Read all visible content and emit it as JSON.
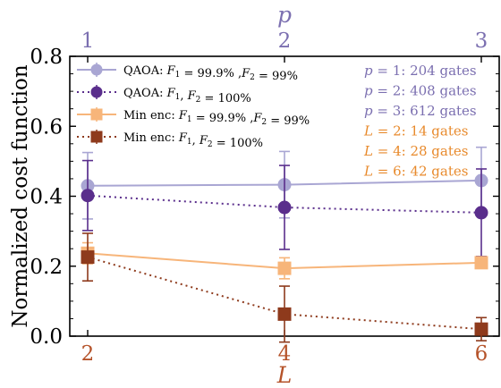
{
  "chart_data": {
    "type": "line",
    "ylabel": "Normalized cost function",
    "ylim": [
      0,
      0.8
    ],
    "yticks": [
      "0.0",
      "0.2",
      "0.4",
      "0.6",
      "0.8"
    ],
    "bottom_axis": {
      "label": "L",
      "color": "#b5532a",
      "ticks": [
        2,
        4,
        6
      ],
      "range": [
        2,
        6
      ]
    },
    "top_axis": {
      "label": "p",
      "color": "#7b6fb0",
      "ticks": [
        1,
        2,
        3
      ],
      "range": [
        1,
        3
      ]
    },
    "grid": false,
    "legend_position": "top-left",
    "series": [
      {
        "name": "QAOA: F1 = 99.9% ,F2 = 99%",
        "axis": "top",
        "color": "#a9a6d3",
        "linestyle": "solid",
        "marker": "circle",
        "x": [
          1,
          2,
          3
        ],
        "y": [
          0.43,
          0.433,
          0.445
        ],
        "err": [
          0.095,
          0.095,
          0.095
        ]
      },
      {
        "name": "QAOA: F1, F2 = 100%",
        "axis": "top",
        "color": "#5a2e8c",
        "linestyle": "dotted",
        "marker": "circle",
        "x": [
          1,
          2,
          3
        ],
        "y": [
          0.402,
          0.368,
          0.353
        ],
        "err": [
          0.1,
          0.12,
          0.125
        ]
      },
      {
        "name": "Min enc: F1 = 99.9% ,F2 = 99%",
        "axis": "bottom",
        "color": "#f7b57a",
        "linestyle": "solid",
        "marker": "square",
        "x": [
          2,
          4,
          6
        ],
        "y": [
          0.237,
          0.194,
          0.21
        ],
        "err": [
          0.03,
          0.03,
          0.01
        ]
      },
      {
        "name": "Min enc: F1, F2 = 100%",
        "axis": "bottom",
        "color": "#8e3a1c",
        "linestyle": "dotted",
        "marker": "square",
        "x": [
          2,
          4,
          6
        ],
        "y": [
          0.226,
          0.063,
          0.02
        ],
        "err": [
          0.068,
          0.08,
          0.033
        ]
      }
    ],
    "legend": [
      {
        "prefix": "QAOA: ",
        "math": [
          [
            "F",
            "1"
          ]
        ],
        "mid": " = 99.9% ,",
        "math2": [
          [
            "F",
            "2"
          ]
        ],
        "suffix": " = 99%",
        "series": 0
      },
      {
        "prefix": "QAOA: ",
        "math": [
          [
            "F",
            "1"
          ]
        ],
        "mid": ", ",
        "math2": [
          [
            "F",
            "2"
          ]
        ],
        "suffix": " = 100%",
        "series": 1
      },
      {
        "prefix": "Min enc: ",
        "math": [
          [
            "F",
            "1"
          ]
        ],
        "mid": " = 99.9% ,",
        "math2": [
          [
            "F",
            "2"
          ]
        ],
        "suffix": " = 99%",
        "series": 2
      },
      {
        "prefix": "Min enc: ",
        "math": [
          [
            "F",
            "1"
          ]
        ],
        "mid": ", ",
        "math2": [
          [
            "F",
            "2"
          ]
        ],
        "suffix": " = 100%",
        "series": 3
      }
    ],
    "annotations": [
      {
        "var": "p",
        "value": "1",
        "text": ": 204 gates",
        "color": "#7b6fb0"
      },
      {
        "var": "p",
        "value": "2",
        "text": ": 408 gates",
        "color": "#7b6fb0"
      },
      {
        "var": "p",
        "value": "3",
        "text": ": 612 gates",
        "color": "#7b6fb0"
      },
      {
        "var": "L",
        "value": "2",
        "text": ": 14 gates",
        "color": "#e88a2c"
      },
      {
        "var": "L",
        "value": "4",
        "text": ": 28 gates",
        "color": "#e88a2c"
      },
      {
        "var": "L",
        "value": "6",
        "text": ": 42 gates",
        "color": "#e88a2c"
      }
    ]
  }
}
